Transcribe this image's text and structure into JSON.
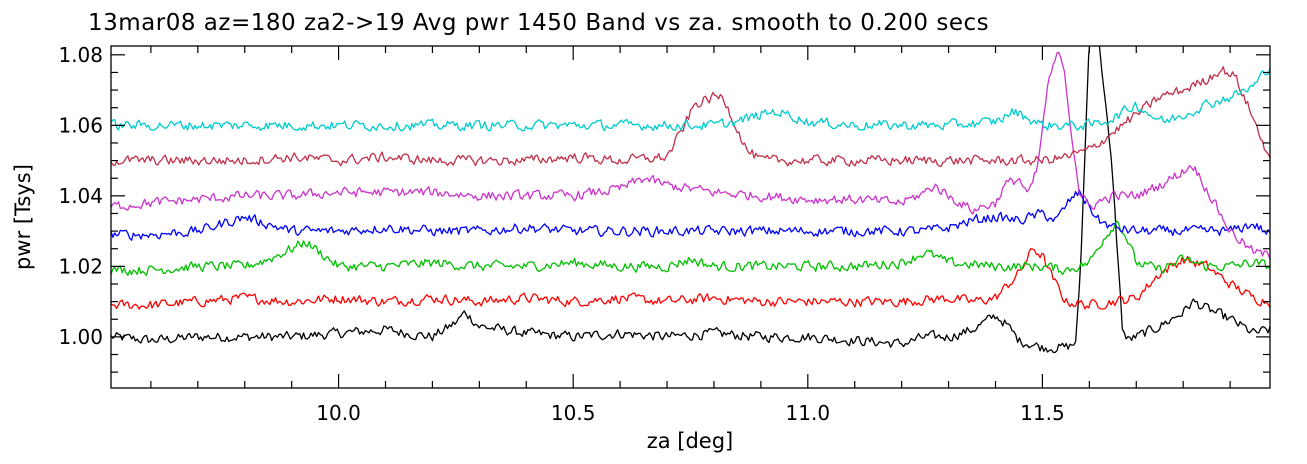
{
  "chart_data": {
    "type": "line",
    "title": "13mar08 az=180 za2->19  Avg pwr 1450 Band vs za. smooth to  0.200 secs",
    "xlabel": "za [deg]",
    "ylabel": "pwr [Tsys]",
    "xlim": [
      9.515,
      11.985
    ],
    "ylim": [
      0.9855,
      1.0825
    ],
    "x_ticks": [
      10.0,
      10.5,
      11.0,
      11.5
    ],
    "x_tick_labels": [
      "10.0",
      "10.5",
      "11.0",
      "11.5"
    ],
    "y_ticks": [
      1.0,
      1.02,
      1.04,
      1.06,
      1.08
    ],
    "y_tick_labels": [
      "1.00",
      "1.02",
      "1.04",
      "1.06",
      "1.08"
    ],
    "grid": false,
    "series": [
      {
        "color": "#000000",
        "x": [
          9.515,
          9.6,
          9.7,
          9.8,
          9.9,
          10.0,
          10.1,
          10.2,
          10.25,
          10.27,
          10.3,
          10.4,
          10.5,
          10.6,
          10.7,
          10.8,
          10.9,
          11.0,
          11.1,
          11.2,
          11.25,
          11.3,
          11.35,
          11.4,
          11.42,
          11.45,
          11.5,
          11.55,
          11.57,
          11.58,
          11.6,
          11.62,
          11.65,
          11.67,
          11.68,
          11.7,
          11.75,
          11.8,
          11.82,
          11.85,
          11.9,
          11.95,
          11.985
        ],
        "y": [
          1.0,
          0.999,
          1.0,
          1.0,
          1.0,
          1.001,
          1.002,
          1.0,
          1.004,
          1.007,
          1.003,
          1.001,
          1.0,
          1.001,
          1.0,
          1.001,
          1.0,
          1.0,
          0.999,
          0.998,
          1.0,
          1.0,
          1.002,
          1.006,
          1.004,
          0.999,
          0.997,
          0.997,
          0.998,
          1.015,
          1.085,
          1.085,
          1.045,
          1.003,
          0.999,
          1.0,
          1.003,
          1.007,
          1.01,
          1.008,
          1.005,
          1.001,
          1.002
        ]
      },
      {
        "color": "#ff0000",
        "x": [
          9.515,
          9.6,
          9.7,
          9.8,
          9.9,
          10.0,
          10.1,
          10.2,
          10.3,
          10.4,
          10.5,
          10.6,
          10.7,
          10.8,
          10.9,
          11.0,
          11.1,
          11.2,
          11.3,
          11.35,
          11.4,
          11.45,
          11.48,
          11.5,
          11.52,
          11.55,
          11.6,
          11.65,
          11.7,
          11.75,
          11.8,
          11.85,
          11.9,
          11.95,
          11.985
        ],
        "y": [
          1.009,
          1.009,
          1.01,
          1.011,
          1.01,
          1.011,
          1.01,
          1.011,
          1.01,
          1.011,
          1.01,
          1.011,
          1.01,
          1.011,
          1.01,
          1.01,
          1.01,
          1.01,
          1.011,
          1.01,
          1.011,
          1.018,
          1.025,
          1.023,
          1.017,
          1.01,
          1.009,
          1.01,
          1.011,
          1.018,
          1.022,
          1.02,
          1.015,
          1.011,
          1.01
        ]
      },
      {
        "color": "#00c000",
        "x": [
          9.515,
          9.6,
          9.7,
          9.8,
          9.85,
          9.9,
          9.93,
          9.96,
          10.0,
          10.1,
          10.2,
          10.3,
          10.4,
          10.5,
          10.6,
          10.7,
          10.75,
          10.8,
          10.9,
          11.0,
          11.1,
          11.2,
          11.25,
          11.3,
          11.4,
          11.5,
          11.55,
          11.6,
          11.63,
          11.66,
          11.68,
          11.7,
          11.75,
          11.8,
          11.85,
          11.9,
          11.95,
          11.985
        ],
        "y": [
          1.019,
          1.019,
          1.02,
          1.02,
          1.022,
          1.025,
          1.027,
          1.024,
          1.02,
          1.02,
          1.021,
          1.02,
          1.02,
          1.021,
          1.02,
          1.02,
          1.022,
          1.02,
          1.02,
          1.02,
          1.02,
          1.021,
          1.024,
          1.021,
          1.02,
          1.02,
          1.019,
          1.021,
          1.028,
          1.033,
          1.028,
          1.021,
          1.019,
          1.022,
          1.02,
          1.02,
          1.021,
          1.02
        ]
      },
      {
        "color": "#0000ff",
        "x": [
          9.515,
          9.6,
          9.7,
          9.75,
          9.8,
          9.85,
          9.9,
          10.0,
          10.1,
          10.2,
          10.3,
          10.4,
          10.5,
          10.6,
          10.7,
          10.8,
          10.9,
          11.0,
          11.1,
          11.2,
          11.25,
          11.3,
          11.35,
          11.4,
          11.45,
          11.5,
          11.53,
          11.56,
          11.58,
          11.6,
          11.62,
          11.65,
          11.7,
          11.8,
          11.9,
          11.95,
          11.985
        ],
        "y": [
          1.029,
          1.029,
          1.03,
          1.032,
          1.034,
          1.032,
          1.03,
          1.03,
          1.031,
          1.03,
          1.03,
          1.031,
          1.03,
          1.03,
          1.03,
          1.03,
          1.03,
          1.03,
          1.03,
          1.03,
          1.03,
          1.031,
          1.033,
          1.034,
          1.033,
          1.035,
          1.033,
          1.039,
          1.041,
          1.037,
          1.033,
          1.031,
          1.03,
          1.03,
          1.03,
          1.032,
          1.029
        ]
      },
      {
        "color": "#cc33cc",
        "x": [
          9.515,
          9.6,
          9.7,
          9.8,
          9.9,
          10.0,
          10.1,
          10.2,
          10.3,
          10.4,
          10.5,
          10.6,
          10.65,
          10.7,
          10.8,
          10.9,
          11.0,
          11.1,
          11.2,
          11.25,
          11.27,
          11.3,
          11.35,
          11.4,
          11.42,
          11.45,
          11.47,
          11.49,
          11.51,
          11.53,
          11.545,
          11.56,
          11.58,
          11.6,
          11.65,
          11.7,
          11.75,
          11.8,
          11.82,
          11.85,
          11.9,
          11.95,
          11.985
        ],
        "y": [
          1.037,
          1.038,
          1.039,
          1.04,
          1.04,
          1.041,
          1.041,
          1.041,
          1.04,
          1.04,
          1.04,
          1.042,
          1.045,
          1.043,
          1.041,
          1.04,
          1.039,
          1.039,
          1.038,
          1.041,
          1.043,
          1.04,
          1.036,
          1.038,
          1.043,
          1.045,
          1.04,
          1.048,
          1.07,
          1.08,
          1.078,
          1.06,
          1.04,
          1.037,
          1.04,
          1.04,
          1.043,
          1.047,
          1.049,
          1.042,
          1.03,
          1.024,
          1.023
        ]
      },
      {
        "color": "#c0304a",
        "x": [
          9.515,
          9.6,
          9.7,
          9.8,
          9.9,
          10.0,
          10.1,
          10.2,
          10.3,
          10.4,
          10.5,
          10.6,
          10.7,
          10.73,
          10.76,
          10.8,
          10.82,
          10.84,
          10.87,
          10.9,
          11.0,
          11.1,
          11.2,
          11.3,
          11.4,
          11.5,
          11.55,
          11.6,
          11.65,
          11.7,
          11.75,
          11.8,
          11.85,
          11.88,
          11.91,
          11.94,
          11.97,
          11.985
        ],
        "y": [
          1.05,
          1.05,
          1.05,
          1.05,
          1.051,
          1.05,
          1.051,
          1.05,
          1.05,
          1.05,
          1.051,
          1.05,
          1.051,
          1.058,
          1.066,
          1.068,
          1.068,
          1.062,
          1.053,
          1.05,
          1.05,
          1.05,
          1.05,
          1.05,
          1.05,
          1.05,
          1.051,
          1.053,
          1.058,
          1.063,
          1.068,
          1.07,
          1.073,
          1.076,
          1.074,
          1.065,
          1.055,
          1.051
        ]
      },
      {
        "color": "#00cccc",
        "x": [
          9.515,
          9.6,
          9.7,
          9.8,
          9.9,
          10.0,
          10.1,
          10.2,
          10.3,
          10.4,
          10.5,
          10.6,
          10.7,
          10.8,
          10.85,
          10.9,
          10.93,
          10.96,
          11.0,
          11.1,
          11.2,
          11.3,
          11.4,
          11.44,
          11.47,
          11.5,
          11.6,
          11.65,
          11.7,
          11.73,
          11.76,
          11.8,
          11.85,
          11.9,
          11.95,
          11.985
        ],
        "y": [
          1.06,
          1.06,
          1.06,
          1.06,
          1.06,
          1.06,
          1.06,
          1.06,
          1.06,
          1.06,
          1.06,
          1.06,
          1.06,
          1.06,
          1.061,
          1.063,
          1.064,
          1.063,
          1.061,
          1.06,
          1.06,
          1.06,
          1.061,
          1.064,
          1.062,
          1.06,
          1.06,
          1.062,
          1.066,
          1.063,
          1.061,
          1.063,
          1.066,
          1.068,
          1.071,
          1.077
        ]
      }
    ]
  }
}
